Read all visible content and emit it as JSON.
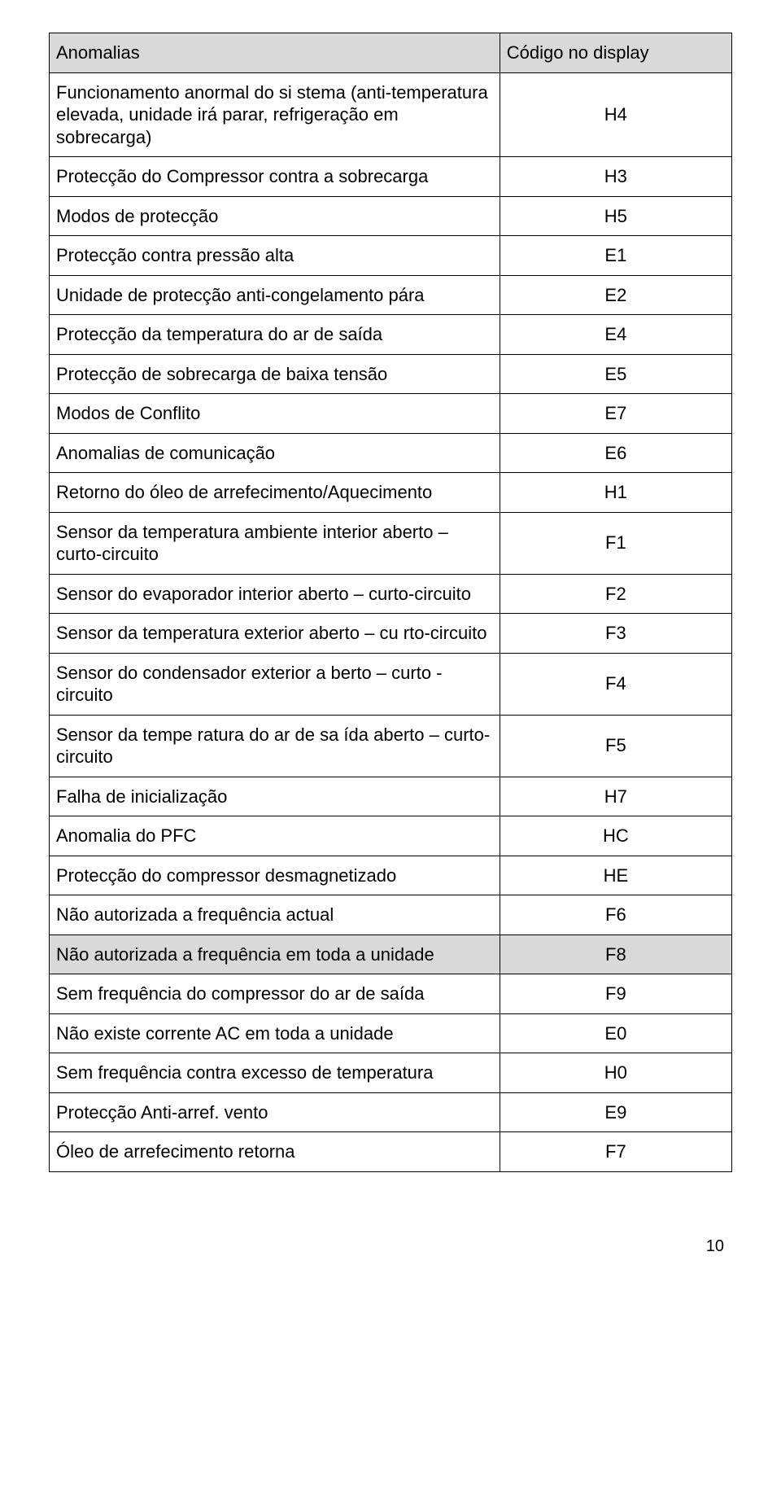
{
  "header": {
    "anomalies": "Anomalias",
    "code": "Código no display"
  },
  "rows": [
    {
      "label": "Funcionamento anormal do si stema (anti-temperatura elevada, unidade irá parar, refrigeração em sobrecarga)",
      "code": "H4"
    },
    {
      "label": "Protecção do Compressor contra a sobrecarga",
      "code": "H3"
    },
    {
      "label": "Modos de protecção",
      "code": "H5"
    },
    {
      "label": "Protecção contra pressão alta",
      "code": "E1"
    },
    {
      "label": "Unidade de protecção anti-congelamento pára",
      "code": "E2"
    },
    {
      "label": "Protecção da temperatura do ar de saída",
      "code": "E4"
    },
    {
      "label": "Protecção de sobrecarga de baixa tensão",
      "code": "E5"
    },
    {
      "label": "Modos de Conflito",
      "code": "E7"
    },
    {
      "label": "Anomalias de comunicação",
      "code": "E6"
    },
    {
      "label": "Retorno do óleo de arrefecimento/Aquecimento",
      "code": "H1"
    },
    {
      "label": "Sensor da temperatura ambiente interior aberto – curto-circuito",
      "code": "F1"
    },
    {
      "label": "Sensor do evaporador interior aberto – curto-circuito",
      "code": "F2"
    },
    {
      "label": "Sensor da temperatura exterior aberto – cu rto-circuito",
      "code": "F3"
    },
    {
      "label": "Sensor do condensador exterior a berto – curto - circuito",
      "code": "F4"
    },
    {
      "label": "Sensor da tempe ratura do ar de sa ída aberto – curto-circuito",
      "code": "F5"
    },
    {
      "label": "Falha de inicialização",
      "code": "H7"
    },
    {
      "label": "Anomalia do PFC",
      "code": "HC"
    },
    {
      "label": "Protecção do compressor desmagnetizado",
      "code": "HE"
    },
    {
      "label": "Não autorizada a frequência actual",
      "code": "F6"
    },
    {
      "label": "Não autorizada a frequência em toda a unidade",
      "code": "F8",
      "shaded": true
    },
    {
      "label": "Sem frequência do compressor do ar de saída",
      "code": "F9"
    },
    {
      "label": "Não existe corrente AC em toda a unidade",
      "code": "E0"
    },
    {
      "label": "Sem frequência contra excesso de temperatura",
      "code": "H0"
    },
    {
      "label": "Protecção Anti-arref. vento",
      "code": "E9"
    },
    {
      "label": "Óleo de arrefecimento retorna",
      "code": "F7"
    }
  ],
  "page_number": "10"
}
